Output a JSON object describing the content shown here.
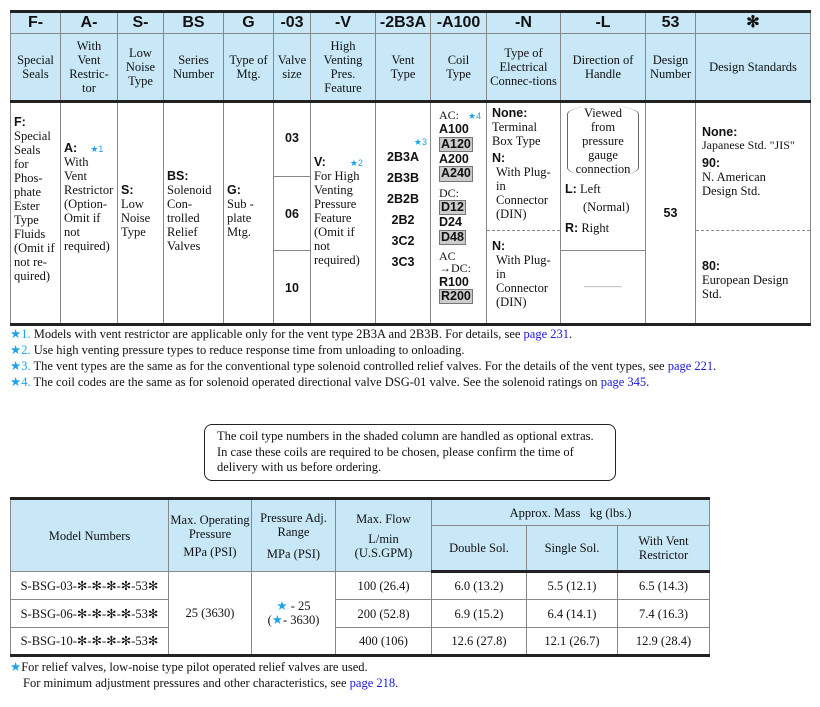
{
  "code_table": {
    "codes": [
      "F-",
      "A-",
      "S-",
      "BS",
      "G",
      "-03",
      "-V",
      "-2B3A",
      "-A100",
      "-N",
      "-L",
      "53",
      "✻"
    ],
    "headers": [
      "Special Seals",
      "With Vent Restric-tor",
      "Low Noise Type",
      "Series Number",
      "Type of Mtg.",
      "Valve size",
      "High Venting Pres. Feature",
      "Vent Type",
      "Coil Type",
      "Type of Electrical Connec-tions",
      "Direction of Handle",
      "Design Number",
      "Design Standards"
    ],
    "special_seals": {
      "code": "F:",
      "text": "Special Seals for Phos-phate Ester Type Fluids (Omit if not re-quired)"
    },
    "vent_restrictor": {
      "code": "A:",
      "star": "★1",
      "text": "With Vent Restrictor (Option-Omit if not required)"
    },
    "low_noise": {
      "code": "S:",
      "text": "Low Noise Type"
    },
    "series": {
      "code": "BS:",
      "text": "Solenoid Con-trolled Relief Valves"
    },
    "mounting": {
      "code": "G:",
      "text": "Sub -plate Mtg."
    },
    "valve_sizes": [
      "03",
      "06",
      "10"
    ],
    "high_venting": {
      "code": "V:",
      "star": "★2",
      "text": "For High Venting Pressure Feature (Omit if not required)"
    },
    "vent_types": {
      "star": "★3",
      "items": [
        "2B3A",
        "2B3B",
        "2B2B",
        "2B2",
        "3C2",
        "3C3"
      ]
    },
    "coil": {
      "star": "★4",
      "ac_label": "AC:",
      "ac": [
        {
          "v": "A100",
          "shaded": false
        },
        {
          "v": "A120",
          "shaded": true
        },
        {
          "v": "A200",
          "shaded": false
        },
        {
          "v": "A240",
          "shaded": true
        }
      ],
      "dc_label": "DC:",
      "dc": [
        {
          "v": "D12",
          "shaded": true
        },
        {
          "v": "D24",
          "shaded": false
        },
        {
          "v": "D48",
          "shaded": true
        }
      ],
      "acdc_label1": "AC",
      "acdc_label2": "→DC:",
      "acdc": [
        {
          "v": "R100",
          "shaded": false
        },
        {
          "v": "R200",
          "shaded": true
        }
      ]
    },
    "electrical": {
      "none_code": "None:",
      "none_text": "Terminal Box Type",
      "n_code": "N:",
      "n_text": "With Plug-in Connector (DIN)",
      "n2_code": "N:",
      "n2_text": "With Plug-in Connector (DIN)"
    },
    "handle": {
      "note": "Viewed from pressure gauge connection",
      "l_code": "L:",
      "l_text": "Left",
      "l_sub": "(Normal)",
      "r_code": "R:",
      "r_text": "Right",
      "dash": "———"
    },
    "design_number": "53",
    "standards": {
      "none_code": "None:",
      "none_text": "Japanese Std. \"JIS\"",
      "c90": "90:",
      "t90": "N. American Design Std.",
      "c80": "80:",
      "t80": "European Design Std."
    }
  },
  "footnotes": [
    {
      "star": "★",
      "num": "1.",
      "text": "Models with vent restrictor are applicable only for the vent type 2B3A and 2B3B.  For details, see ",
      "link": "page 231",
      "end": "."
    },
    {
      "star": "★",
      "num": "2.",
      "text": "Use high venting pressure types to reduce response time from unloading to onloading.",
      "link": "",
      "end": ""
    },
    {
      "star": "★",
      "num": "3.",
      "text": "The vent types are the same as for the conventional type solenoid controlled relief valves.  For the details of the vent types, see ",
      "link": "page 221",
      "end": "."
    },
    {
      "star": "★",
      "num": "4.",
      "text": "The coil codes are the same as for solenoid operated directional valve DSG-01 valve.  See the solenoid ratings on ",
      "link": "page 345",
      "end": "."
    }
  ],
  "note": "The coil type numbers in the shaded column are handled as optional extras. In case these coils are required to be chosen, please confirm the time of delivery with us before ordering.",
  "spec_table": {
    "headers": {
      "model": "Model Numbers",
      "max_pressure": "Max. Operating Pressure",
      "max_pressure_unit": "MPa (PSI)",
      "adj_range": "Pressure Adj. Range",
      "adj_unit": "MPa (PSI)",
      "flow": "Max. Flow",
      "flow_unit1": "L/min",
      "flow_unit2": "(U.S.GPM)",
      "mass": "Approx. Mass   kg (lbs.)",
      "double": "Double Sol.",
      "single": "Single Sol.",
      "vent": "With Vent Restrictor"
    },
    "max_pressure": "25 (3630)",
    "adj_range_1": "- 25",
    "adj_range_2": "- 3630)",
    "rows": [
      {
        "model": "S-BSG-03-✻-✻-✻-✻-53✻",
        "flow": "100 (26.4)",
        "double": "6.0 (13.2)",
        "single": "5.5 (12.1)",
        "vent": "6.5 (14.3)"
      },
      {
        "model": "S-BSG-06-✻-✻-✻-✻-53✻",
        "flow": "200 (52.8)",
        "double": "6.9 (15.2)",
        "single": "6.4 (14.1)",
        "vent": "7.4 (16.3)"
      },
      {
        "model": "S-BSG-10-✻-✻-✻-✻-53✻",
        "flow": "400 (106)",
        "double": "12.6 (27.8)",
        "single": "12.1 (26.7)",
        "vent": "12.9 (28.4)"
      }
    ]
  },
  "bottom_note": {
    "line1": "For relief valves, low-noise type pilot operated relief valves are used.",
    "line2": "For minimum adjustment pressures and other characteristics, see ",
    "link": "page 218",
    "end": "."
  },
  "colors": {
    "header_bg": "#c8e8f8",
    "star": "#1aa3e8",
    "link": "#1a1ae0",
    "shade": "#cccccc"
  }
}
